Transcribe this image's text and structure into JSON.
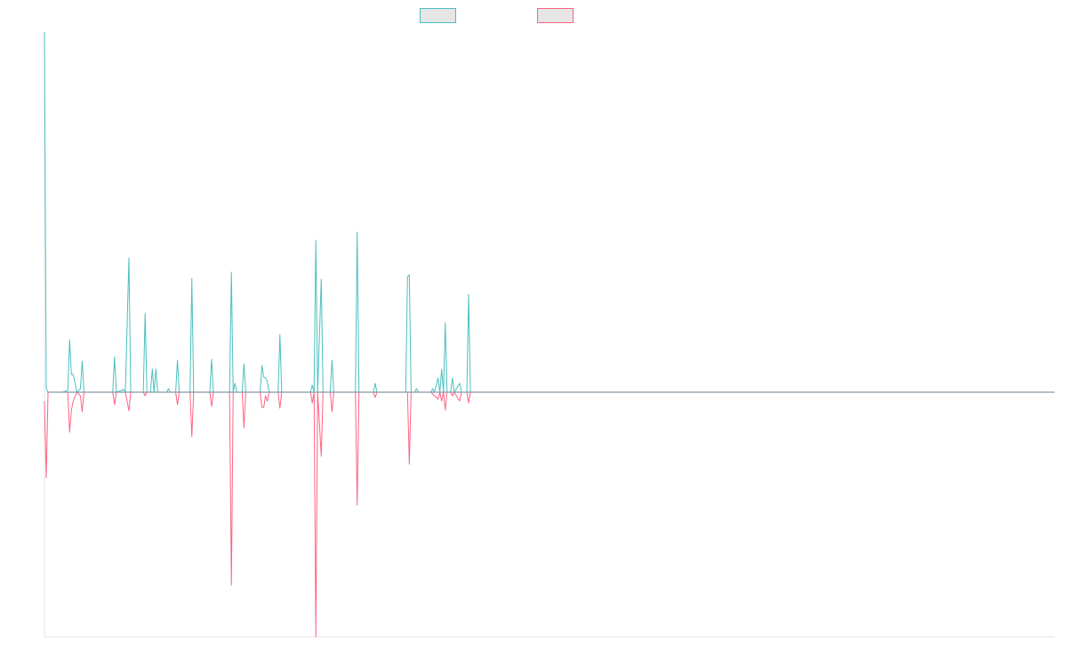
{
  "colors": {
    "series_up": "#4bc0c0",
    "series_down": "#ff6384",
    "baseline": "#8a99a8",
    "axis": "#e5e5e5",
    "legend_fill": "#e6e6e6"
  },
  "chart_data": {
    "type": "line",
    "title": "",
    "xlabel": "",
    "ylabel": "",
    "grid": false,
    "legend_position": "top-center",
    "ylim": [
      -275,
      405
    ],
    "xlim": [
      0,
      562
    ],
    "series": [
      {
        "key": "up",
        "color": "#4bc0c0",
        "legend_label": "",
        "points": [
          [
            0,
            405
          ],
          [
            1,
            4
          ],
          [
            2,
            0
          ],
          [
            10,
            0
          ],
          [
            13,
            2
          ],
          [
            14,
            59
          ],
          [
            15,
            20
          ],
          [
            16,
            20
          ],
          [
            18,
            0
          ],
          [
            20,
            4
          ],
          [
            21,
            35
          ],
          [
            22,
            0
          ],
          [
            38,
            0
          ],
          [
            39,
            40
          ],
          [
            40,
            0
          ],
          [
            43,
            2
          ],
          [
            44,
            3
          ],
          [
            45,
            0
          ],
          [
            47,
            151
          ],
          [
            48,
            0
          ],
          [
            55,
            0
          ],
          [
            56,
            89
          ],
          [
            57,
            0
          ],
          [
            59,
            0
          ],
          [
            60,
            26
          ],
          [
            61,
            0
          ],
          [
            62,
            26
          ],
          [
            63,
            0
          ],
          [
            68,
            0
          ],
          [
            69,
            4
          ],
          [
            70,
            0
          ],
          [
            73,
            0
          ],
          [
            74,
            36
          ],
          [
            75,
            0
          ],
          [
            81,
            0
          ],
          [
            82,
            128
          ],
          [
            83,
            0
          ],
          [
            92,
            0
          ],
          [
            93,
            37
          ],
          [
            94,
            0
          ],
          [
            103,
            0
          ],
          [
            104,
            135
          ],
          [
            105,
            0
          ],
          [
            106,
            10
          ],
          [
            107,
            0
          ],
          [
            110,
            0
          ],
          [
            111,
            32
          ],
          [
            112,
            0
          ],
          [
            120,
            0
          ],
          [
            121,
            30
          ],
          [
            122,
            17
          ],
          [
            123,
            16
          ],
          [
            124,
            12
          ],
          [
            125,
            0
          ],
          [
            130,
            0
          ],
          [
            131,
            65
          ],
          [
            132,
            0
          ],
          [
            148,
            0
          ],
          [
            149,
            8
          ],
          [
            150,
            0
          ],
          [
            151,
            171
          ],
          [
            152,
            0
          ],
          [
            154,
            127
          ],
          [
            155,
            0
          ],
          [
            159,
            0
          ],
          [
            160,
            36
          ],
          [
            161,
            0
          ],
          [
            173,
            0
          ],
          [
            174,
            180
          ],
          [
            175,
            0
          ],
          [
            183,
            0
          ],
          [
            184,
            10
          ],
          [
            185,
            0
          ],
          [
            193,
            0
          ],
          [
            194,
            0
          ],
          [
            201,
            0
          ],
          [
            202,
            130
          ],
          [
            203,
            132
          ],
          [
            204,
            0
          ],
          [
            206,
            0
          ],
          [
            207,
            4
          ],
          [
            208,
            0
          ],
          [
            215,
            0
          ],
          [
            216,
            4
          ],
          [
            217,
            0
          ],
          [
            219,
            16
          ],
          [
            220,
            0
          ],
          [
            221,
            26
          ],
          [
            222,
            0
          ],
          [
            223,
            78
          ],
          [
            224,
            0
          ],
          [
            226,
            0
          ],
          [
            227,
            16
          ],
          [
            228,
            0
          ],
          [
            231,
            10
          ],
          [
            232,
            0
          ],
          [
            235,
            0
          ],
          [
            236,
            110
          ],
          [
            237,
            0
          ],
          [
            562,
            0
          ]
        ]
      },
      {
        "key": "down",
        "color": "#ff6384",
        "legend_label": "",
        "points": [
          [
            0,
            -10
          ],
          [
            1,
            -96
          ],
          [
            2,
            0
          ],
          [
            10,
            0
          ],
          [
            13,
            0
          ],
          [
            14,
            -45
          ],
          [
            15,
            -20
          ],
          [
            16,
            -10
          ],
          [
            18,
            0
          ],
          [
            20,
            -4
          ],
          [
            21,
            -22
          ],
          [
            22,
            0
          ],
          [
            38,
            0
          ],
          [
            39,
            -14
          ],
          [
            40,
            0
          ],
          [
            45,
            0
          ],
          [
            47,
            -21
          ],
          [
            48,
            0
          ],
          [
            55,
            0
          ],
          [
            56,
            -4
          ],
          [
            57,
            0
          ],
          [
            70,
            0
          ],
          [
            73,
            0
          ],
          [
            74,
            -14
          ],
          [
            75,
            0
          ],
          [
            81,
            0
          ],
          [
            82,
            -50
          ],
          [
            83,
            0
          ],
          [
            92,
            0
          ],
          [
            93,
            -16
          ],
          [
            94,
            0
          ],
          [
            103,
            0
          ],
          [
            104,
            -217
          ],
          [
            105,
            0
          ],
          [
            110,
            0
          ],
          [
            111,
            -40
          ],
          [
            112,
            0
          ],
          [
            120,
            0
          ],
          [
            121,
            -17
          ],
          [
            122,
            -17
          ],
          [
            123,
            -4
          ],
          [
            124,
            -10
          ],
          [
            125,
            0
          ],
          [
            130,
            0
          ],
          [
            131,
            -18
          ],
          [
            132,
            0
          ],
          [
            148,
            0
          ],
          [
            149,
            -12
          ],
          [
            150,
            0
          ],
          [
            151,
            -275
          ],
          [
            152,
            0
          ],
          [
            154,
            -72
          ],
          [
            155,
            0
          ],
          [
            159,
            0
          ],
          [
            160,
            -22
          ],
          [
            161,
            0
          ],
          [
            173,
            0
          ],
          [
            174,
            -127
          ],
          [
            175,
            0
          ],
          [
            183,
            0
          ],
          [
            184,
            -6
          ],
          [
            185,
            0
          ],
          [
            202,
            0
          ],
          [
            203,
            -81
          ],
          [
            204,
            0
          ],
          [
            215,
            0
          ],
          [
            219,
            -8
          ],
          [
            220,
            0
          ],
          [
            221,
            -10
          ],
          [
            222,
            0
          ],
          [
            223,
            -20
          ],
          [
            224,
            0
          ],
          [
            226,
            0
          ],
          [
            227,
            -4
          ],
          [
            228,
            0
          ],
          [
            231,
            -10
          ],
          [
            232,
            0
          ],
          [
            235,
            0
          ],
          [
            236,
            -12
          ],
          [
            237,
            0
          ],
          [
            562,
            0
          ]
        ]
      }
    ]
  }
}
